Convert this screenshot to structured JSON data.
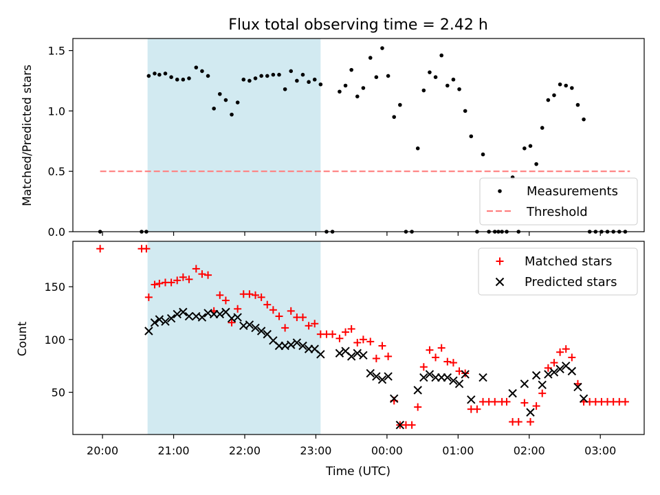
{
  "figure": {
    "title": "Flux total observing time = 2.42 h",
    "xlabel": "Time (UTC)",
    "colors": {
      "shade": "#add8e6",
      "threshold": "#ff7f7f",
      "matched": "#ff0000",
      "predicted": "#000000",
      "measurement": "#000000"
    }
  },
  "chart_data": [
    {
      "type": "scatter",
      "panel": "top",
      "ylabel": "Matched/Predicted stars",
      "xlim": [
        "19:35",
        "03:37"
      ],
      "ylim": [
        0,
        1.6
      ],
      "x_ticks": [
        "20:00",
        "21:00",
        "22:00",
        "23:00",
        "00:00",
        "01:00",
        "02:00",
        "03:00"
      ],
      "y_ticks": [
        "0.0",
        "0.5",
        "1.0",
        "1.5"
      ],
      "highlight_span": [
        "20:38",
        "23:04"
      ],
      "legend": {
        "placement": "lower right",
        "entries": [
          "Measurements",
          "Threshold"
        ]
      },
      "threshold": {
        "name": "Threshold",
        "y": 0.5,
        "x_range": [
          "19:58",
          "03:25"
        ]
      },
      "series": [
        {
          "name": "Measurements",
          "marker": "dot",
          "points": [
            [
              "19:58",
              0
            ],
            [
              "20:33",
              0
            ],
            [
              "20:37",
              0
            ],
            [
              "20:39",
              1.29
            ],
            [
              "20:44",
              1.31
            ],
            [
              "20:48",
              1.3
            ],
            [
              "20:53",
              1.31
            ],
            [
              "20:58",
              1.28
            ],
            [
              "21:03",
              1.26
            ],
            [
              "21:08",
              1.26
            ],
            [
              "21:13",
              1.27
            ],
            [
              "21:19",
              1.36
            ],
            [
              "21:24",
              1.33
            ],
            [
              "21:29",
              1.29
            ],
            [
              "21:34",
              1.02
            ],
            [
              "21:39",
              1.14
            ],
            [
              "21:44",
              1.09
            ],
            [
              "21:49",
              0.97
            ],
            [
              "21:54",
              1.07
            ],
            [
              "21:59",
              1.26
            ],
            [
              "22:04",
              1.25
            ],
            [
              "22:09",
              1.27
            ],
            [
              "22:14",
              1.29
            ],
            [
              "22:19",
              1.29
            ],
            [
              "22:24",
              1.3
            ],
            [
              "22:29",
              1.3
            ],
            [
              "22:34",
              1.18
            ],
            [
              "22:39",
              1.33
            ],
            [
              "22:44",
              1.25
            ],
            [
              "22:49",
              1.3
            ],
            [
              "22:54",
              1.24
            ],
            [
              "22:59",
              1.26
            ],
            [
              "23:04",
              1.22
            ],
            [
              "23:09",
              0
            ],
            [
              "23:14",
              0
            ],
            [
              "23:20",
              1.16
            ],
            [
              "23:25",
              1.21
            ],
            [
              "23:30",
              1.34
            ],
            [
              "23:35",
              1.12
            ],
            [
              "23:40",
              1.19
            ],
            [
              "23:46",
              1.44
            ],
            [
              "23:51",
              1.28
            ],
            [
              "23:56",
              1.52
            ],
            [
              "00:01",
              1.29
            ],
            [
              "00:06",
              0.95
            ],
            [
              "00:11",
              1.05
            ],
            [
              "00:16",
              0
            ],
            [
              "00:21",
              0
            ],
            [
              "00:26",
              0.69
            ],
            [
              "00:31",
              1.17
            ],
            [
              "00:36",
              1.32
            ],
            [
              "00:41",
              1.28
            ],
            [
              "00:46",
              1.46
            ],
            [
              "00:51",
              1.21
            ],
            [
              "00:56",
              1.26
            ],
            [
              "01:01",
              1.18
            ],
            [
              "01:06",
              1.0
            ],
            [
              "01:11",
              0.79
            ],
            [
              "01:16",
              0
            ],
            [
              "01:21",
              0.64
            ],
            [
              "01:26",
              0
            ],
            [
              "01:31",
              0
            ],
            [
              "01:34",
              0
            ],
            [
              "01:37",
              0
            ],
            [
              "01:41",
              0
            ],
            [
              "01:46",
              0.45
            ],
            [
              "01:51",
              0
            ],
            [
              "01:56",
              0.69
            ],
            [
              "02:01",
              0.71
            ],
            [
              "02:06",
              0.56
            ],
            [
              "02:11",
              0.86
            ],
            [
              "02:16",
              1.09
            ],
            [
              "02:21",
              1.13
            ],
            [
              "02:26",
              1.22
            ],
            [
              "02:31",
              1.21
            ],
            [
              "02:36",
              1.19
            ],
            [
              "02:41",
              1.05
            ],
            [
              "02:46",
              0.93
            ],
            [
              "02:51",
              0
            ],
            [
              "02:56",
              0
            ],
            [
              "03:01",
              0
            ],
            [
              "03:06",
              0
            ],
            [
              "03:11",
              0
            ],
            [
              "03:16",
              0
            ],
            [
              "03:21",
              0
            ]
          ]
        }
      ]
    },
    {
      "type": "scatter",
      "panel": "bottom",
      "ylabel": "Count",
      "xlabel": "Time (UTC)",
      "xlim": [
        "19:35",
        "03:37"
      ],
      "ylim": [
        10,
        193
      ],
      "x_ticks": [
        "20:00",
        "21:00",
        "22:00",
        "23:00",
        "00:00",
        "01:00",
        "02:00",
        "03:00"
      ],
      "y_ticks": [
        "50",
        "100",
        "150"
      ],
      "highlight_span": [
        "20:38",
        "23:04"
      ],
      "legend": {
        "placement": "upper right",
        "entries": [
          "Matched stars",
          "Predicted stars"
        ]
      },
      "series": [
        {
          "name": "Matched stars",
          "marker": "plus",
          "points": [
            [
              "19:58",
              186
            ],
            [
              "20:33",
              186
            ],
            [
              "20:37",
              186
            ],
            [
              "20:39",
              140
            ],
            [
              "20:44",
              152
            ],
            [
              "20:48",
              153
            ],
            [
              "20:53",
              154
            ],
            [
              "20:58",
              154
            ],
            [
              "21:03",
              156
            ],
            [
              "21:08",
              159
            ],
            [
              "21:13",
              157
            ],
            [
              "21:19",
              167
            ],
            [
              "21:24",
              162
            ],
            [
              "21:29",
              161
            ],
            [
              "21:34",
              127
            ],
            [
              "21:39",
              142
            ],
            [
              "21:44",
              137
            ],
            [
              "21:49",
              116
            ],
            [
              "21:54",
              129
            ],
            [
              "21:59",
              143
            ],
            [
              "22:04",
              143
            ],
            [
              "22:09",
              142
            ],
            [
              "22:14",
              140
            ],
            [
              "22:19",
              133
            ],
            [
              "22:24",
              128
            ],
            [
              "22:29",
              122
            ],
            [
              "22:34",
              111
            ],
            [
              "22:39",
              127
            ],
            [
              "22:44",
              121
            ],
            [
              "22:49",
              121
            ],
            [
              "22:54",
              113
            ],
            [
              "22:59",
              115
            ],
            [
              "23:04",
              105
            ],
            [
              "23:09",
              105
            ],
            [
              "23:14",
              105
            ],
            [
              "23:20",
              101
            ],
            [
              "23:25",
              107
            ],
            [
              "23:30",
              110
            ],
            [
              "23:35",
              97
            ],
            [
              "23:40",
              100
            ],
            [
              "23:46",
              98
            ],
            [
              "23:51",
              82
            ],
            [
              "23:56",
              94
            ],
            [
              "00:01",
              84
            ],
            [
              "00:06",
              42
            ],
            [
              "00:11",
              19
            ],
            [
              "00:16",
              19
            ],
            [
              "00:21",
              19
            ],
            [
              "00:26",
              36
            ],
            [
              "00:31",
              74
            ],
            [
              "00:36",
              90
            ],
            [
              "00:41",
              83
            ],
            [
              "00:46",
              92
            ],
            [
              "00:51",
              79
            ],
            [
              "00:56",
              78
            ],
            [
              "01:01",
              70
            ],
            [
              "01:06",
              68
            ],
            [
              "01:11",
              34
            ],
            [
              "01:16",
              34
            ],
            [
              "01:21",
              41
            ],
            [
              "01:26",
              41
            ],
            [
              "01:31",
              41
            ],
            [
              "01:37",
              41
            ],
            [
              "01:41",
              41
            ],
            [
              "01:46",
              22
            ],
            [
              "01:51",
              22
            ],
            [
              "01:56",
              40
            ],
            [
              "02:01",
              22
            ],
            [
              "02:06",
              37
            ],
            [
              "02:11",
              49
            ],
            [
              "02:16",
              73
            ],
            [
              "02:21",
              78
            ],
            [
              "02:26",
              88
            ],
            [
              "02:31",
              91
            ],
            [
              "02:36",
              83
            ],
            [
              "02:41",
              58
            ],
            [
              "02:46",
              41
            ],
            [
              "02:51",
              41
            ],
            [
              "02:56",
              41
            ],
            [
              "03:01",
              41
            ],
            [
              "03:06",
              41
            ],
            [
              "03:11",
              41
            ],
            [
              "03:16",
              41
            ],
            [
              "03:21",
              41
            ]
          ]
        },
        {
          "name": "Predicted stars",
          "marker": "x",
          "points": [
            [
              "20:39",
              108
            ],
            [
              "20:44",
              116
            ],
            [
              "20:48",
              119
            ],
            [
              "20:53",
              117
            ],
            [
              "20:58",
              120
            ],
            [
              "21:03",
              124
            ],
            [
              "21:08",
              126
            ],
            [
              "21:13",
              122
            ],
            [
              "21:19",
              122
            ],
            [
              "21:24",
              121
            ],
            [
              "21:29",
              125
            ],
            [
              "21:34",
              124
            ],
            [
              "21:39",
              124
            ],
            [
              "21:44",
              126
            ],
            [
              "21:49",
              120
            ],
            [
              "21:54",
              121
            ],
            [
              "21:59",
              113
            ],
            [
              "22:04",
              114
            ],
            [
              "22:09",
              111
            ],
            [
              "22:14",
              108
            ],
            [
              "22:19",
              105
            ],
            [
              "22:24",
              99
            ],
            [
              "22:29",
              94
            ],
            [
              "22:34",
              94
            ],
            [
              "22:39",
              95
            ],
            [
              "22:44",
              97
            ],
            [
              "22:49",
              94
            ],
            [
              "22:54",
              91
            ],
            [
              "22:59",
              91
            ],
            [
              "23:04",
              86
            ],
            [
              "23:20",
              87
            ],
            [
              "23:25",
              89
            ],
            [
              "23:30",
              84
            ],
            [
              "23:35",
              87
            ],
            [
              "23:40",
              85
            ],
            [
              "23:46",
              68
            ],
            [
              "23:51",
              65
            ],
            [
              "23:56",
              62
            ],
            [
              "00:01",
              65
            ],
            [
              "00:06",
              44
            ],
            [
              "00:11",
              19
            ],
            [
              "00:26",
              52
            ],
            [
              "00:31",
              64
            ],
            [
              "00:36",
              67
            ],
            [
              "00:41",
              64
            ],
            [
              "00:46",
              64
            ],
            [
              "00:51",
              64
            ],
            [
              "00:56",
              61
            ],
            [
              "01:01",
              58
            ],
            [
              "01:06",
              67
            ],
            [
              "01:11",
              43
            ],
            [
              "01:21",
              64
            ],
            [
              "01:46",
              49
            ],
            [
              "01:56",
              58
            ],
            [
              "02:01",
              31
            ],
            [
              "02:06",
              66
            ],
            [
              "02:11",
              57
            ],
            [
              "02:16",
              67
            ],
            [
              "02:21",
              69
            ],
            [
              "02:26",
              72
            ],
            [
              "02:31",
              75
            ],
            [
              "02:36",
              70
            ],
            [
              "02:41",
              55
            ],
            [
              "02:46",
              44
            ]
          ]
        }
      ]
    }
  ]
}
